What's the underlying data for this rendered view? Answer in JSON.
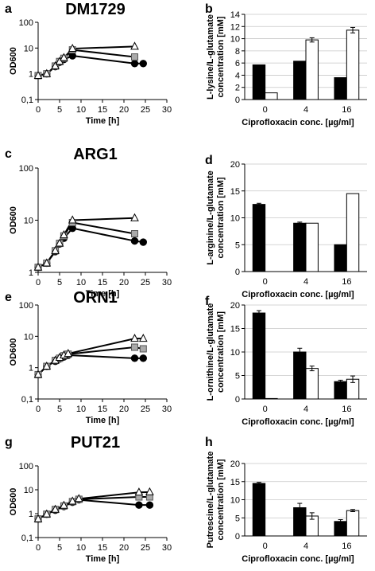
{
  "chart_data": [
    {
      "panel": "a",
      "type": "line",
      "title": "DM1729",
      "xlabel": "Time [h]",
      "ylabel": "OD600",
      "xlim": [
        0,
        30
      ],
      "xticks": [
        0,
        5,
        10,
        15,
        20,
        25,
        30
      ],
      "xtick_labels": [
        "0",
        "5",
        "10",
        "15",
        "20",
        "25",
        "30"
      ],
      "yscale": "log",
      "ylim": [
        0.1,
        100
      ],
      "yticks": [
        0.1,
        1,
        10,
        100
      ],
      "ytick_labels": [
        "0,1",
        "1",
        "10",
        "100"
      ],
      "series": [
        {
          "marker": "circle",
          "color": "#000000",
          "points": [
            [
              0,
              0.85
            ],
            [
              2,
              1.0
            ],
            [
              4,
              1.9
            ],
            [
              5,
              2.8
            ],
            [
              6,
              3.6
            ],
            [
              8,
              5.0
            ],
            [
              22.5,
              2.5
            ],
            [
              24.5,
              2.5
            ]
          ]
        },
        {
          "marker": "square",
          "color": "#aaaaaa",
          "points": [
            [
              0,
              0.85
            ],
            [
              2,
              1.0
            ],
            [
              4,
              2.0
            ],
            [
              5,
              3.0
            ],
            [
              6,
              4.0
            ],
            [
              8,
              8.5
            ],
            [
              22.5,
              4.5
            ]
          ]
        },
        {
          "marker": "triangle",
          "color": "#ffffff",
          "points": [
            [
              0,
              0.85
            ],
            [
              2,
              1.0
            ],
            [
              4,
              2.0
            ],
            [
              5,
              3.0
            ],
            [
              6,
              4.2
            ],
            [
              8,
              9.5
            ],
            [
              22.5,
              11.5
            ]
          ]
        }
      ]
    },
    {
      "panel": "b",
      "type": "bar",
      "ylabel": "L-lysine/L-glutamate concentration [mM]",
      "xlabel": "Ciprofloxacin conc. [µg/ml]",
      "categories": [
        "0",
        "4",
        "16"
      ],
      "ylim": [
        0,
        14
      ],
      "yticks": [
        0,
        2,
        4,
        6,
        8,
        10,
        12,
        14
      ],
      "ytick_labels": [
        "0",
        "2",
        "4",
        "6",
        "8",
        "10",
        "12",
        "14"
      ],
      "series": [
        {
          "color": "#000000",
          "values": [
            5.7,
            6.3,
            3.6
          ],
          "errors": [
            0,
            0,
            0
          ]
        },
        {
          "color": "#ffffff",
          "values": [
            1.1,
            9.8,
            11.4
          ],
          "errors": [
            0,
            0.35,
            0.45
          ]
        }
      ]
    },
    {
      "panel": "c",
      "type": "line",
      "title": "ARG1",
      "xlabel": "Time [h]",
      "ylabel": "OD600",
      "xlim": [
        0,
        30
      ],
      "xticks": [
        0,
        5,
        10,
        15,
        20,
        25,
        30
      ],
      "xtick_labels": [
        "0",
        "5",
        "10",
        "15",
        "20",
        "25",
        "30"
      ],
      "yscale": "log",
      "ylim": [
        1,
        100
      ],
      "yticks": [
        1,
        10,
        100
      ],
      "ytick_labels": [
        "1",
        "10",
        "100"
      ],
      "series": [
        {
          "marker": "circle",
          "color": "#000000",
          "points": [
            [
              0,
              1.25
            ],
            [
              2,
              1.5
            ],
            [
              4,
              2.5
            ],
            [
              5,
              3.5
            ],
            [
              6,
              4.5
            ],
            [
              8,
              7.0
            ],
            [
              22.5,
              4.0
            ],
            [
              24.5,
              3.8
            ]
          ]
        },
        {
          "marker": "square",
          "color": "#aaaaaa",
          "points": [
            [
              0,
              1.25
            ],
            [
              2,
              1.5
            ],
            [
              4,
              2.6
            ],
            [
              5,
              3.6
            ],
            [
              6,
              5.0
            ],
            [
              8,
              9.0
            ],
            [
              22.5,
              5.5
            ]
          ]
        },
        {
          "marker": "triangle",
          "color": "#ffffff",
          "points": [
            [
              0,
              1.25
            ],
            [
              2,
              1.5
            ],
            [
              4,
              2.6
            ],
            [
              5,
              3.6
            ],
            [
              6,
              5.2
            ],
            [
              8,
              10.0
            ],
            [
              22.5,
              11.0
            ]
          ]
        }
      ]
    },
    {
      "panel": "d",
      "type": "bar",
      "ylabel": "L-arginine/L-glutamate concentration [mM]",
      "xlabel": "Ciprofloxacin conc. [µg/ml]",
      "categories": [
        "0",
        "4",
        "16"
      ],
      "ylim": [
        0,
        20
      ],
      "yticks": [
        0,
        5,
        10,
        15,
        20
      ],
      "ytick_labels": [
        "0",
        "5",
        "10",
        "15",
        "20"
      ],
      "series": [
        {
          "color": "#000000",
          "values": [
            12.5,
            9.0,
            5.0
          ],
          "errors": [
            0.2,
            0.2,
            0
          ]
        },
        {
          "color": "#ffffff",
          "values": [
            0,
            9.0,
            14.5
          ],
          "errors": [
            0,
            0,
            0
          ]
        }
      ]
    },
    {
      "panel": "e",
      "type": "line",
      "title": "ORN1",
      "xlabel": "Time [h]",
      "ylabel": "OD600",
      "xlim": [
        0,
        30
      ],
      "xticks": [
        0,
        5,
        10,
        15,
        20,
        25,
        30
      ],
      "xtick_labels": [
        "0",
        "5",
        "10",
        "15",
        "20",
        "25",
        "30"
      ],
      "yscale": "log",
      "ylim": [
        0.1,
        100
      ],
      "yticks": [
        0.1,
        1,
        10,
        100
      ],
      "ytick_labels": [
        "0,1",
        "1",
        "10",
        "100"
      ],
      "series": [
        {
          "marker": "circle",
          "color": "#000000",
          "points": [
            [
              0,
              0.6
            ],
            [
              2,
              1.1
            ],
            [
              4,
              1.6
            ],
            [
              5,
              1.9
            ],
            [
              6,
              2.2
            ],
            [
              7,
              2.5
            ],
            [
              22.5,
              2.0
            ],
            [
              24.5,
              2.0
            ]
          ]
        },
        {
          "marker": "square",
          "color": "#aaaaaa",
          "points": [
            [
              0,
              0.6
            ],
            [
              2,
              1.1
            ],
            [
              4,
              1.7
            ],
            [
              5,
              2.0
            ],
            [
              6,
              2.4
            ],
            [
              7,
              2.7
            ],
            [
              22.5,
              4.5
            ],
            [
              24.5,
              4.0
            ]
          ]
        },
        {
          "marker": "triangle",
          "color": "#ffffff",
          "points": [
            [
              0,
              0.6
            ],
            [
              2,
              1.1
            ],
            [
              4,
              1.7
            ],
            [
              5,
              2.1
            ],
            [
              6,
              2.5
            ],
            [
              7,
              2.8
            ],
            [
              22.5,
              8.5
            ],
            [
              24.5,
              8.5
            ]
          ]
        }
      ]
    },
    {
      "panel": "f",
      "type": "bar",
      "ylabel": "L-ornithine/L-glutamate concentration [mM]",
      "xlabel": "Ciprofloxacin conc. [µg/ml]",
      "categories": [
        "0",
        "4",
        "16"
      ],
      "ylim": [
        0,
        20
      ],
      "yticks": [
        0,
        5,
        10,
        15,
        20
      ],
      "ytick_labels": [
        "0",
        "5",
        "10",
        "15",
        "20"
      ],
      "series": [
        {
          "color": "#000000",
          "values": [
            18.3,
            10.0,
            3.7
          ],
          "errors": [
            0.5,
            0.8,
            0.3
          ]
        },
        {
          "color": "#ffffff",
          "values": [
            0.1,
            6.5,
            4.2
          ],
          "errors": [
            0,
            0.5,
            0.7
          ]
        }
      ]
    },
    {
      "panel": "g",
      "type": "line",
      "title": "PUT21",
      "xlabel": "Time [h]",
      "ylabel": "OD600",
      "xlim": [
        0,
        30
      ],
      "xticks": [
        0,
        5,
        10,
        15,
        20,
        25,
        30
      ],
      "xtick_labels": [
        "0",
        "5",
        "10",
        "15",
        "20",
        "25",
        "30"
      ],
      "yscale": "log",
      "ylim": [
        0.1,
        100
      ],
      "yticks": [
        0.1,
        1,
        10,
        100
      ],
      "ytick_labels": [
        "0,1",
        "1",
        "10",
        "100"
      ],
      "series": [
        {
          "marker": "circle",
          "color": "#000000",
          "points": [
            [
              0,
              0.6
            ],
            [
              2,
              0.95
            ],
            [
              4,
              1.4
            ],
            [
              6,
              2.0
            ],
            [
              8,
              3.0
            ],
            [
              9.5,
              3.8
            ],
            [
              23.5,
              2.3
            ],
            [
              26,
              2.3
            ]
          ]
        },
        {
          "marker": "square",
          "color": "#aaaaaa",
          "points": [
            [
              0,
              0.6
            ],
            [
              2,
              0.95
            ],
            [
              4,
              1.5
            ],
            [
              6,
              2.1
            ],
            [
              8,
              3.2
            ],
            [
              9.5,
              4.0
            ],
            [
              23.5,
              5.0
            ],
            [
              26,
              5.0
            ]
          ]
        },
        {
          "marker": "triangle",
          "color": "#ffffff",
          "points": [
            [
              0,
              0.6
            ],
            [
              2,
              0.95
            ],
            [
              4,
              1.5
            ],
            [
              6,
              2.2
            ],
            [
              8,
              3.3
            ],
            [
              9.5,
              4.2
            ],
            [
              23.5,
              7.8
            ],
            [
              26,
              8.0
            ]
          ]
        }
      ]
    },
    {
      "panel": "h",
      "type": "bar",
      "ylabel": "Putrescine/L-glutamate concentration [mM]",
      "xlabel": "Ciprofloxacin conc. [µg/ml]",
      "categories": [
        "0",
        "4",
        "16"
      ],
      "ylim": [
        0,
        20
      ],
      "yticks": [
        0,
        5,
        10,
        15,
        20
      ],
      "ytick_labels": [
        "0",
        "5",
        "10",
        "15",
        "20"
      ],
      "series": [
        {
          "color": "#000000",
          "values": [
            14.5,
            7.8,
            4.0
          ],
          "errors": [
            0.3,
            1.2,
            0.5
          ]
        },
        {
          "color": "#ffffff",
          "values": [
            0,
            5.5,
            7.0
          ],
          "errors": [
            0,
            0.9,
            0.3
          ]
        }
      ]
    }
  ]
}
